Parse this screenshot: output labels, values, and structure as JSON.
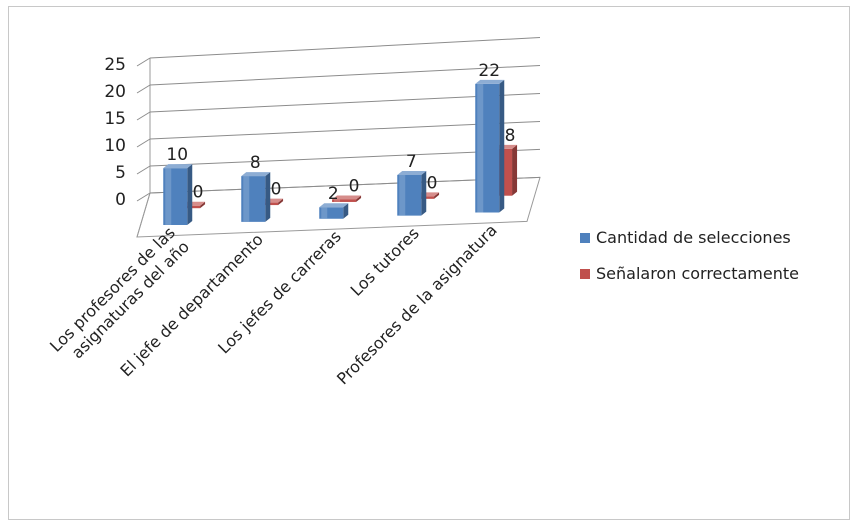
{
  "chart_data": {
    "type": "bar",
    "title": "",
    "xlabel": "",
    "ylabel": "",
    "ylim": [
      0,
      25
    ],
    "yticks": [
      0,
      5,
      10,
      15,
      20,
      25
    ],
    "grid": true,
    "legend_position": "right",
    "categories": [
      [
        "Los profesores de las",
        "asignaturas del año"
      ],
      [
        "El jefe de departamento"
      ],
      [
        "Los jefes de carreras"
      ],
      [
        "Los tutores"
      ],
      [
        "Profesores de la asignatura"
      ]
    ],
    "series": [
      {
        "name": "Cantidad de selecciones",
        "color": "#4f81bd",
        "values": [
          10,
          8,
          2,
          7,
          22
        ]
      },
      {
        "name": "Señalaron correctamente",
        "color": "#c0504d",
        "values": [
          0,
          0,
          0,
          0,
          8
        ]
      }
    ]
  }
}
